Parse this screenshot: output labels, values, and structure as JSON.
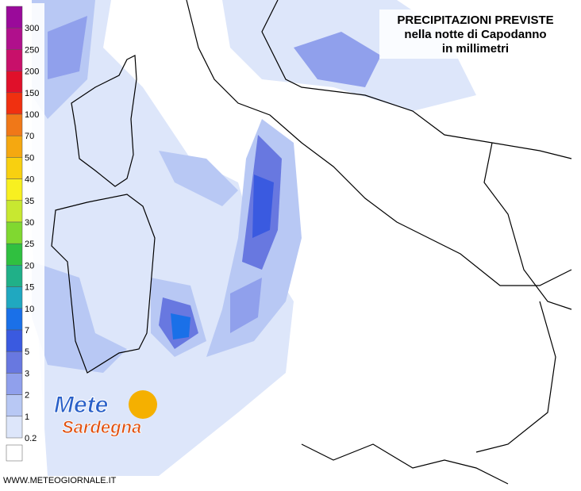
{
  "header": {
    "title": "PRECIPITAZIONI PREVISTE",
    "subtitle": "nella notte di Capodanno",
    "unit_line": "in millimetri"
  },
  "legend": {
    "levels": [
      {
        "label": "300",
        "color": "#9a0a9a"
      },
      {
        "label": "250",
        "color": "#b0108c"
      },
      {
        "label": "200",
        "color": "#c8106a"
      },
      {
        "label": "150",
        "color": "#e0102a"
      },
      {
        "label": "100",
        "color": "#f03010"
      },
      {
        "label": "70",
        "color": "#f07818"
      },
      {
        "label": "50",
        "color": "#f5a810"
      },
      {
        "label": "40",
        "color": "#f8d010"
      },
      {
        "label": "35",
        "color": "#f8f020"
      },
      {
        "label": "30",
        "color": "#c8e830"
      },
      {
        "label": "25",
        "color": "#80d830"
      },
      {
        "label": "20",
        "color": "#30c040"
      },
      {
        "label": "15",
        "color": "#20b088"
      },
      {
        "label": "10",
        "color": "#20a8c0"
      },
      {
        "label": "7",
        "color": "#1a70e8"
      },
      {
        "label": "5",
        "color": "#3a5ae0"
      },
      {
        "label": "3",
        "color": "#6878e0"
      },
      {
        "label": "2",
        "color": "#90a0ec"
      },
      {
        "label": "1",
        "color": "#b8c8f4"
      },
      {
        "label": "0.2",
        "color": "#dde6fa"
      }
    ]
  },
  "logo": {
    "line1": "Mete",
    "line2": "Sardegna"
  },
  "footer": {
    "url": "WWW.METEOGIORNALE.IT"
  }
}
